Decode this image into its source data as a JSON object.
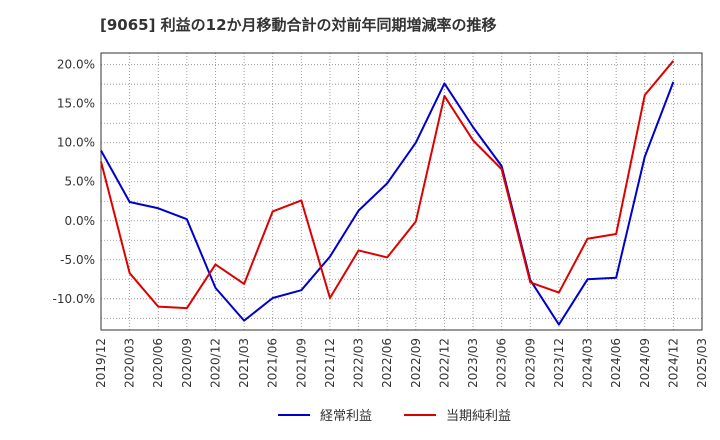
{
  "chart_data": {
    "type": "line",
    "title": "[9065]  利益の12か月移動合計の対前年同期増減率の推移",
    "x": [
      "2019/12",
      "2020/03",
      "2020/06",
      "2020/09",
      "2020/12",
      "2021/03",
      "2021/06",
      "2021/09",
      "2021/12",
      "2022/03",
      "2022/06",
      "2022/09",
      "2022/12",
      "2023/03",
      "2023/06",
      "2023/09",
      "2023/12",
      "2024/03",
      "2024/06",
      "2024/09",
      "2024/12",
      "2025/03"
    ],
    "ylim": [
      -14,
      21.5
    ],
    "yticks": [
      20,
      15,
      10,
      5,
      0,
      -5,
      -10
    ],
    "ytick_labels": [
      "20.0%",
      "15.0%",
      "10.0%",
      "5.0%",
      "0.0%",
      "-5.0%",
      "-10.0%"
    ],
    "grid": true,
    "legend_position": "bottom",
    "series": [
      {
        "name": "経常利益",
        "color": "#0000cc",
        "values": [
          9.0,
          2.4,
          1.6,
          0.2,
          -8.6,
          -12.8,
          -9.9,
          -8.9,
          -4.6,
          1.3,
          4.8,
          10.0,
          17.6,
          12.0,
          7.0,
          -7.6,
          -13.3,
          -7.5,
          -7.3,
          8.2,
          17.8,
          null
        ]
      },
      {
        "name": "当期純利益",
        "color": "#dd0000",
        "values": [
          7.6,
          -6.7,
          -11.0,
          -11.2,
          -5.6,
          -8.1,
          1.2,
          2.6,
          -9.9,
          -3.8,
          -4.7,
          -0.1,
          16.0,
          10.3,
          6.6,
          -7.9,
          -9.2,
          -2.3,
          -1.7,
          16.1,
          20.5,
          null
        ]
      }
    ]
  }
}
